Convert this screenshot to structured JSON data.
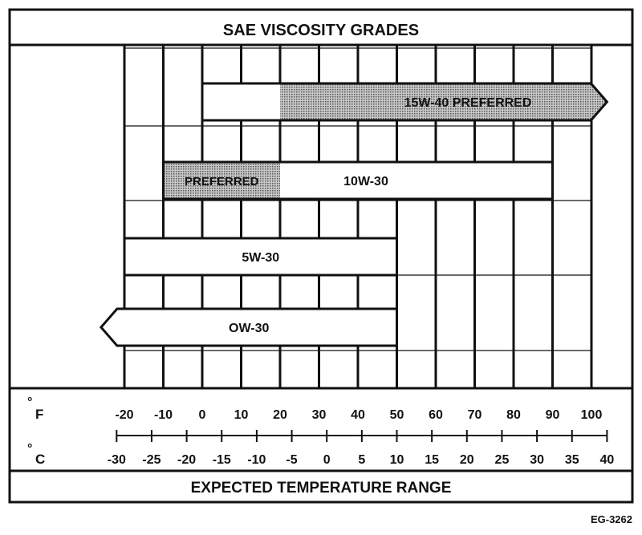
{
  "title": "SAE VISCOSITY GRADES",
  "footer": "EXPECTED TEMPERATURE RANGE",
  "figure_code": "EG-3262",
  "axes": {
    "fahrenheit": {
      "unit_label": "F",
      "ticks": [
        "-20",
        "-10",
        "0",
        "10",
        "20",
        "30",
        "40",
        "50",
        "60",
        "70",
        "80",
        "90",
        "100"
      ]
    },
    "celsius": {
      "unit_label": "C",
      "ticks": [
        "-30",
        "-25",
        "-20",
        "-15",
        "-10",
        "-5",
        "0",
        "5",
        "10",
        "15",
        "20",
        "25",
        "30",
        "35",
        "40"
      ]
    }
  },
  "grades": [
    {
      "id": "15w40",
      "from_f": 0,
      "to_f": 104,
      "shaded_from_f": 20,
      "shaded_to_f": 104,
      "arrow": "right",
      "label": "15W-40 PREFERRED",
      "shaded_label": ""
    },
    {
      "id": "10w30",
      "from_f": -10,
      "to_f": 90,
      "shaded_from_f": -10,
      "shaded_to_f": 20,
      "arrow": "none",
      "label": "10W-30",
      "shaded_label": "PREFERRED"
    },
    {
      "id": "5w30",
      "from_f": -20,
      "to_f": 50,
      "shaded_from_f": null,
      "shaded_to_f": null,
      "arrow": "none",
      "label": "5W-30",
      "shaded_label": ""
    },
    {
      "id": "0w30",
      "from_f": -26,
      "to_f": 50,
      "shaded_from_f": null,
      "shaded_to_f": null,
      "arrow": "left",
      "label": "OW-30",
      "shaded_label": ""
    }
  ],
  "colors": {
    "ink": "#111111",
    "shade": "#9a9a9a",
    "paper": "#ffffff"
  }
}
